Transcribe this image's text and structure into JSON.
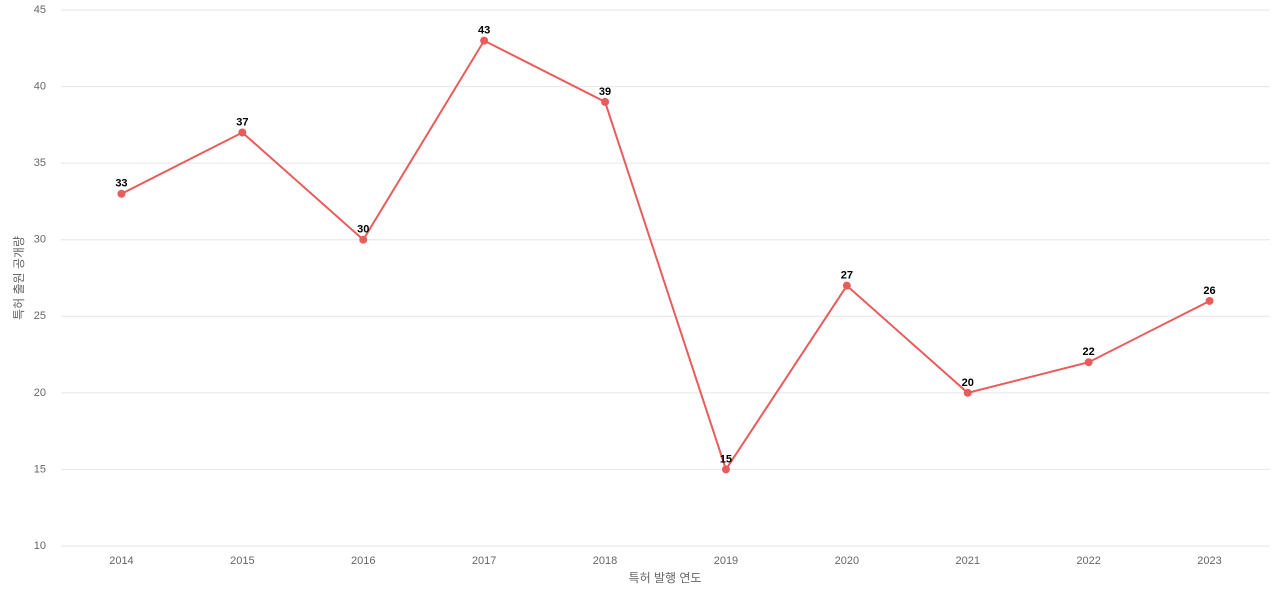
{
  "chart_data": {
    "type": "line",
    "x_label": "특허 발행 연도",
    "y_label": "특허 출원 공개량",
    "categories": [
      "2014",
      "2015",
      "2016",
      "2017",
      "2018",
      "2019",
      "2020",
      "2021",
      "2022",
      "2023"
    ],
    "series": [
      {
        "name": "특허 출원 공개량",
        "color": "#e85c5c",
        "values": [
          33,
          37,
          30,
          43,
          39,
          15,
          27,
          20,
          22,
          26
        ]
      }
    ],
    "ylim": [
      10,
      45
    ],
    "yticks": [
      10,
      15,
      20,
      25,
      30,
      35,
      40,
      45
    ],
    "grid": true
  }
}
